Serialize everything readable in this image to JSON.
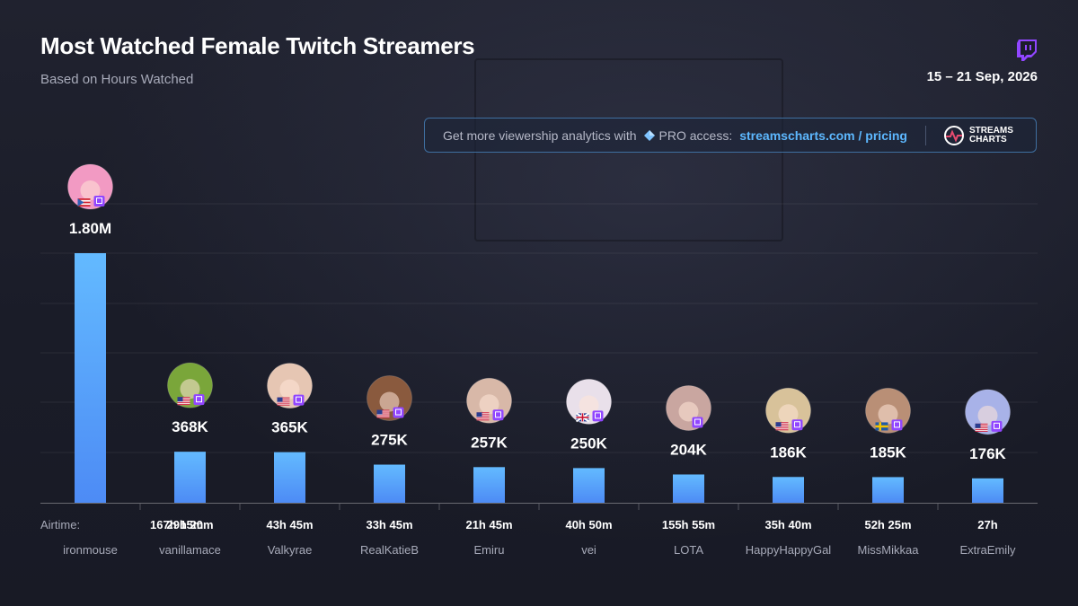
{
  "header": {
    "title": "Most Watched Female Twitch Streamers",
    "subtitle": "Based on Hours Watched",
    "date": "15 – 21 Sep, 2026"
  },
  "promo": {
    "text": "Get more viewership analytics with",
    "pro": "PRO access:",
    "link": "streamscharts.com / pricing",
    "brand_line1": "STREAMS",
    "brand_line2": "CHARTS"
  },
  "colors": {
    "bar_top": "#63baff",
    "bar_bottom": "#4d8bf5",
    "twitch": "#9146ff",
    "accent_link": "#5db8ff"
  },
  "chart_data": {
    "type": "bar",
    "metric": "Hours Watched",
    "categories": [
      "ironmouse",
      "vanillamace",
      "Valkyrae",
      "RealKatieB",
      "Emiru",
      "vei",
      "LOTA",
      "HappyHappyGal",
      "MissMikkaa",
      "ExtraEmily"
    ],
    "values": [
      1800000,
      368000,
      365000,
      275000,
      257000,
      250000,
      204000,
      186000,
      185000,
      176000
    ],
    "value_labels": [
      "1.80M",
      "368K",
      "365K",
      "275K",
      "257K",
      "250K",
      "204K",
      "186K",
      "185K",
      "176K"
    ],
    "airtime_label": "Airtime:",
    "airtime": [
      "167h 15m",
      "29h 20m",
      "43h 45m",
      "33h 45m",
      "21h 45m",
      "40h 50m",
      "155h 55m",
      "35h 40m",
      "52h 25m",
      "27h"
    ],
    "flags": [
      "puerto-rico-flag",
      "usa-flag",
      "usa-flag",
      "usa-flag",
      "usa-flag",
      "uk-flag",
      "no-flag",
      "usa-flag",
      "sweden-flag",
      "usa-flag"
    ],
    "avatar_colors": [
      "#f29ac3",
      "#7aa63a",
      "#e6c6b3",
      "#8a5a3e",
      "#d8b8a8",
      "#e9e0ea",
      "#c9a6a0",
      "#d8c29a",
      "#b98f76",
      "#a8b2e8"
    ],
    "ylim": [
      0,
      1800000
    ],
    "grid": true,
    "legend": "none"
  }
}
